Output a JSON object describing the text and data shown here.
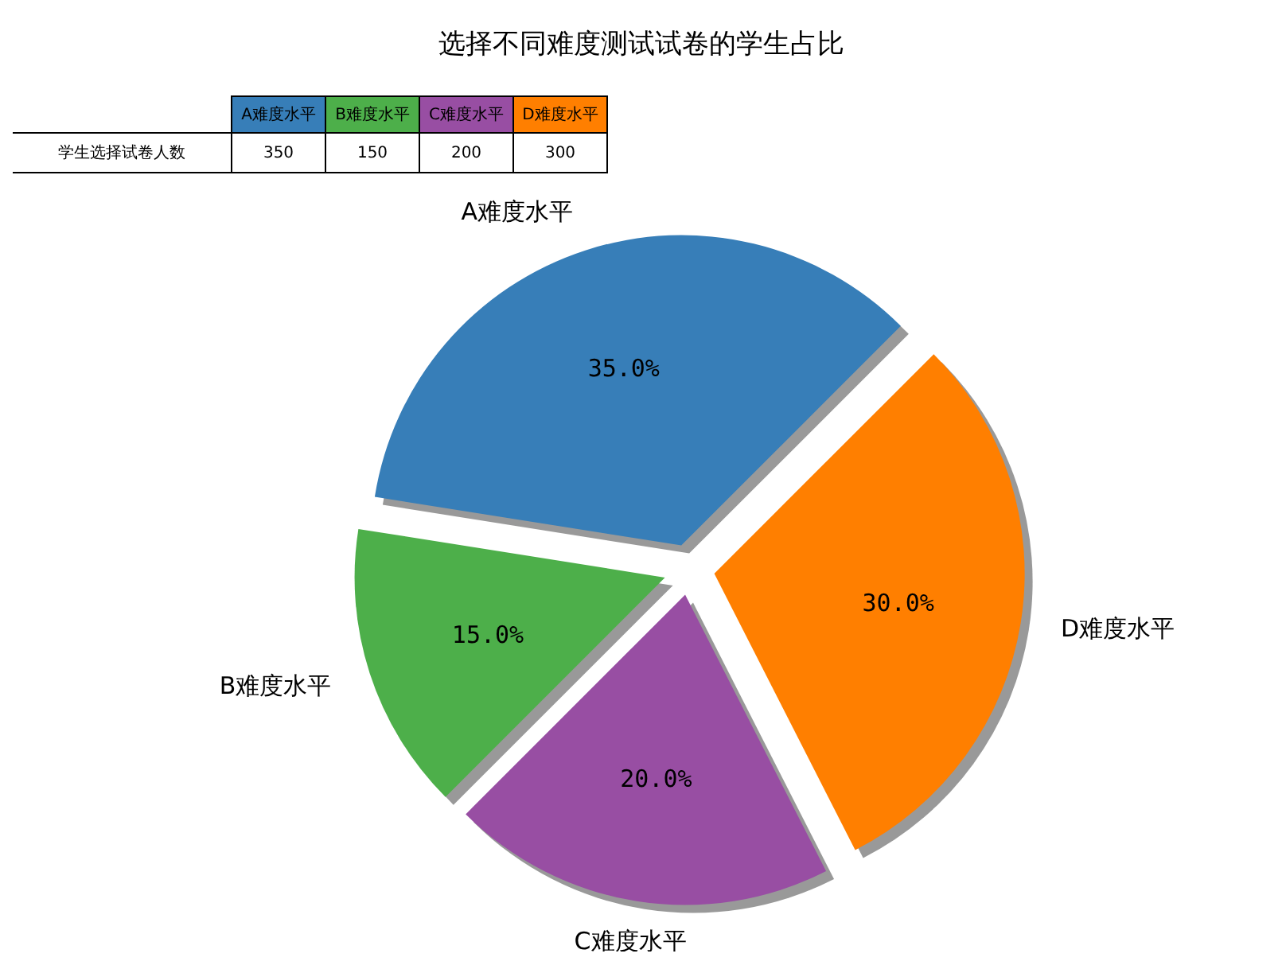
{
  "chart_data": {
    "type": "pie",
    "title": "选择不同难度测试试卷的学生占比",
    "categories": [
      "A难度水平",
      "B难度水平",
      "C难度水平",
      "D难度水平"
    ],
    "values": [
      35,
      15,
      20,
      30
    ],
    "colors": [
      "#377eb8",
      "#4daf4a",
      "#984ea3",
      "#ff7f00"
    ],
    "value_labels": [
      "35.0%",
      "15.0%",
      "20.0%",
      "30.0%"
    ],
    "annotations": [
      "学生选择试卷人数",
      "350",
      "150",
      "200",
      "300"
    ],
    "legend": false
  }
}
